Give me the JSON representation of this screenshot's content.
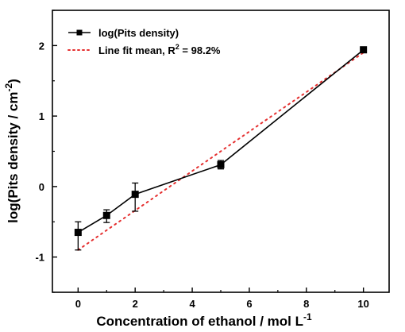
{
  "chart_data": {
    "type": "line",
    "xlabel_main": "Concentration of ethanol / mol L",
    "xlabel_sup": "-1",
    "ylabel_main": "log(Pits density / cm",
    "ylabel_sup": "-2",
    "ylabel_end": ")",
    "xlim": [
      -0.9,
      10.9
    ],
    "ylim": [
      -1.5,
      2.5
    ],
    "xticks": [
      0,
      2,
      4,
      6,
      8,
      10
    ],
    "yticks": [
      -1,
      0,
      1,
      2
    ],
    "grid": false,
    "legend_position": "top-left",
    "series": [
      {
        "name": "log(Pits density)",
        "style": "solid-line-square-markers",
        "color": "#000000",
        "x": [
          0,
          1,
          2,
          5,
          10
        ],
        "y": [
          -0.65,
          -0.41,
          -0.11,
          0.31,
          1.94
        ],
        "err_low": [
          0.25,
          0.1,
          0.24,
          0.06,
          0.03
        ],
        "err_high": [
          0.15,
          0.08,
          0.16,
          0.06,
          0.03
        ]
      },
      {
        "name_prefix": "Line fit mean, R",
        "name_sup": "2",
        "name_suffix": " = 98.2%",
        "style": "dotted-line",
        "color": "#e53030",
        "x": [
          0,
          10
        ],
        "y": [
          -0.9,
          1.9
        ]
      }
    ]
  }
}
